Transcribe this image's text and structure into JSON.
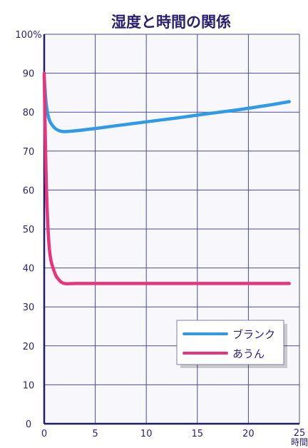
{
  "chart_data": {
    "type": "line",
    "title": "湿度と時間の関係",
    "xlabel": "時間",
    "ylabel": "",
    "xlim": [
      0,
      25
    ],
    "ylim": [
      0,
      100
    ],
    "x_ticks": [
      "0",
      "5",
      "10",
      "15",
      "20",
      "25"
    ],
    "y_ticks": [
      "0",
      "10",
      "20",
      "30",
      "40",
      "50",
      "60",
      "70",
      "80",
      "90",
      "100%"
    ],
    "grid": true,
    "legend_position": "lower-right",
    "series": [
      {
        "name": "ブランク",
        "color": "#2f9be6",
        "x": [
          0,
          0.2,
          0.5,
          1,
          1.5,
          2,
          3,
          5,
          7,
          10,
          13,
          16,
          19,
          22,
          24
        ],
        "y": [
          89,
          82,
          78,
          76,
          75.2,
          75,
          75.2,
          75.8,
          76.5,
          77.5,
          78.5,
          79.6,
          80.6,
          81.8,
          82.7
        ]
      },
      {
        "name": "あうん",
        "color": "#e8337d",
        "x": [
          0,
          0.2,
          0.5,
          1,
          1.5,
          2,
          3,
          5,
          8,
          12,
          16,
          20,
          24
        ],
        "y": [
          90,
          62,
          45,
          39,
          36.8,
          36,
          36,
          36,
          36,
          36,
          36,
          36,
          36
        ]
      }
    ]
  }
}
